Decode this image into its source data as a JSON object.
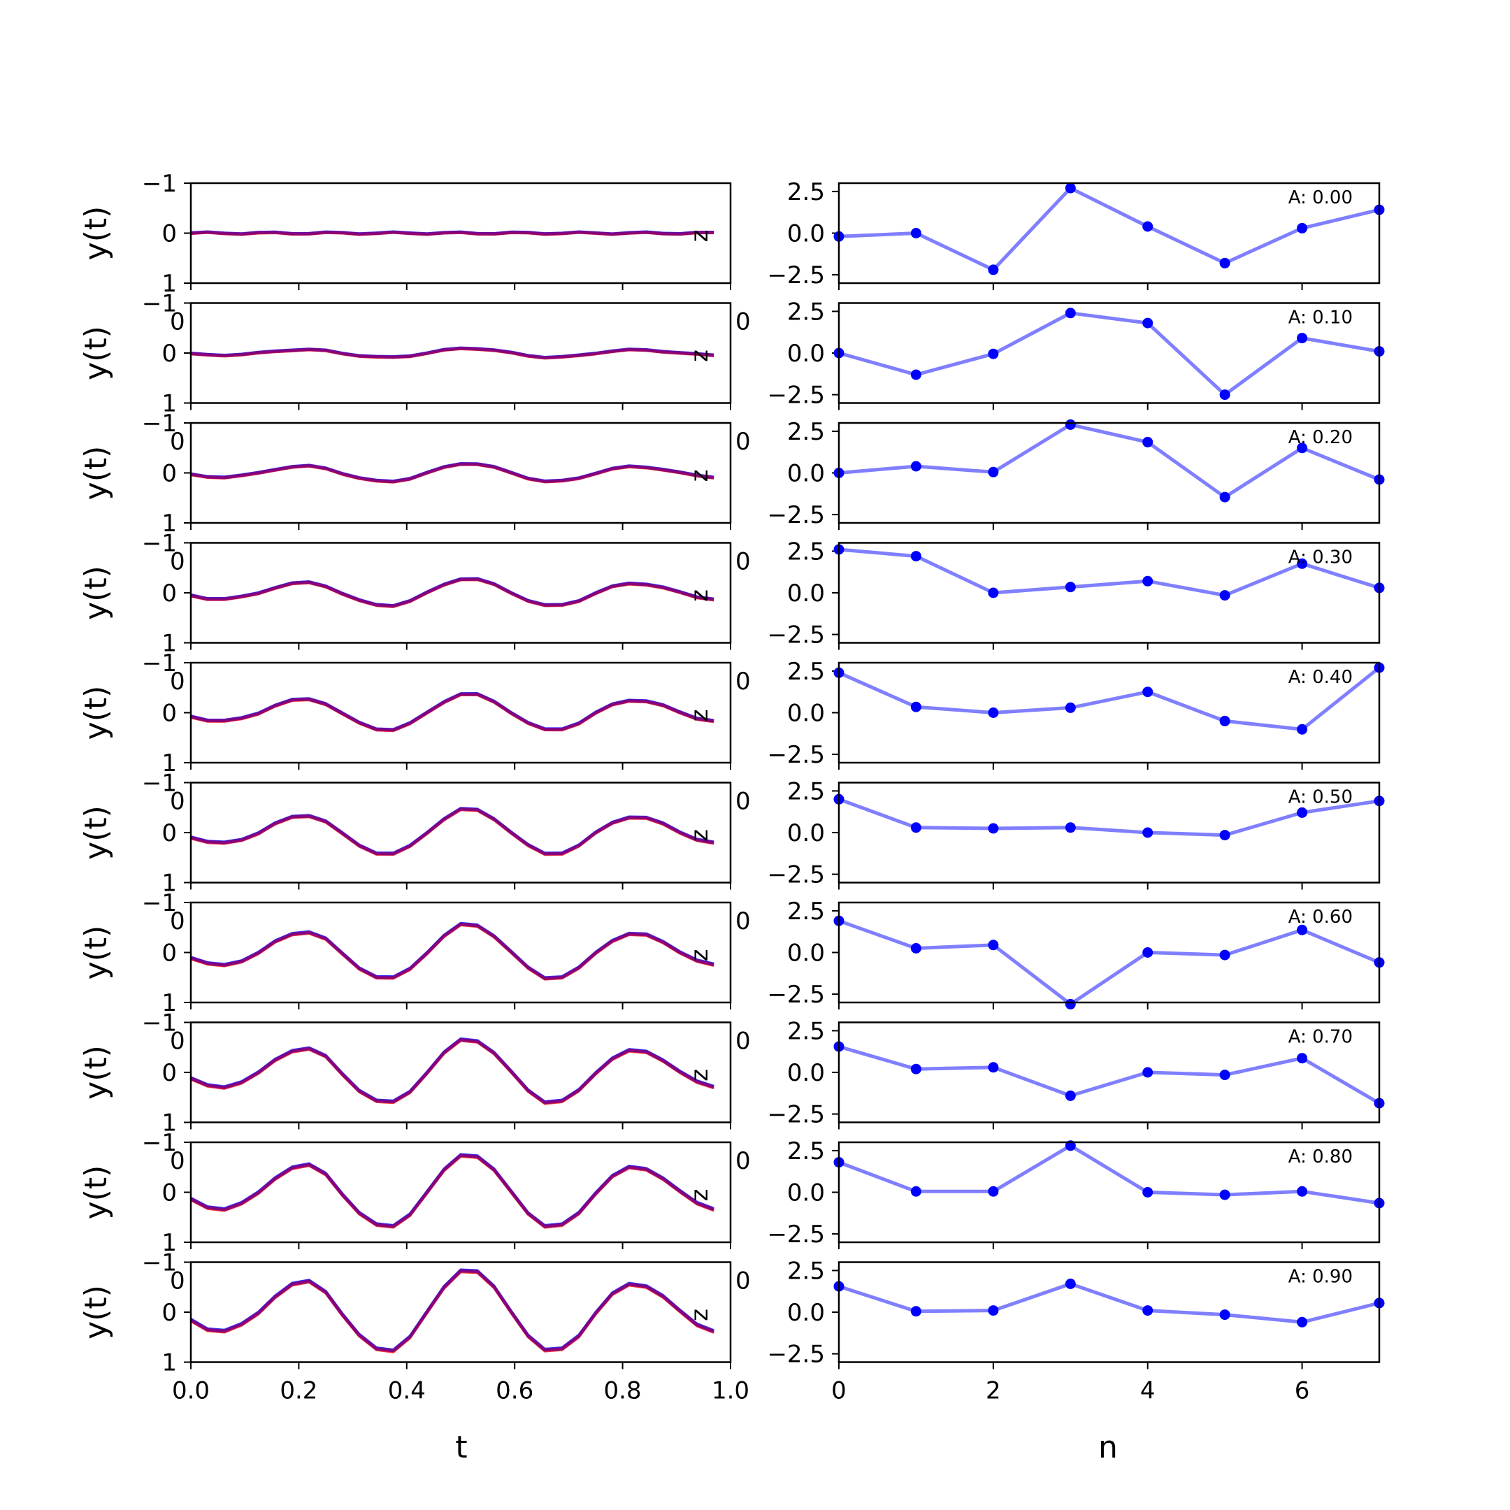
{
  "figure": {
    "left_column": {
      "xlabel": "t",
      "ylabel": "y(t)",
      "side_label": "z"
    },
    "right_column": {
      "xlabel": "n"
    }
  },
  "chart_data": [
    {
      "type": "line",
      "panel": "left",
      "rows": 10,
      "xlabel": "t",
      "ylabel": "y(t)",
      "xlim": [
        0,
        1
      ],
      "ylim": [
        -1,
        1
      ],
      "xticks": [
        "0.0",
        "0.2",
        "0.4",
        "0.6",
        "0.8",
        "1.0"
      ],
      "yticks": [
        "-1",
        "0",
        "1"
      ],
      "x": [
        0.0,
        0.031,
        0.062,
        0.094,
        0.125,
        0.156,
        0.188,
        0.219,
        0.25,
        0.281,
        0.312,
        0.344,
        0.375,
        0.406,
        0.438,
        0.469,
        0.5,
        0.531,
        0.562,
        0.594,
        0.625,
        0.656,
        0.688,
        0.719,
        0.75,
        0.781,
        0.812,
        0.844,
        0.875,
        0.906,
        0.938,
        0.969
      ],
      "row_amplitudes": [
        0.0,
        0.1,
        0.2,
        0.3,
        0.4,
        0.5,
        0.6,
        0.7,
        0.8,
        0.9
      ],
      "base_shape": [
        -0.18,
        -0.38,
        -0.42,
        -0.28,
        -0.02,
        0.35,
        0.62,
        0.68,
        0.45,
        -0.05,
        -0.52,
        -0.82,
        -0.85,
        -0.55,
        0.0,
        0.55,
        0.93,
        0.9,
        0.55,
        0.0,
        -0.52,
        -0.85,
        -0.82,
        -0.52,
        -0.02,
        0.4,
        0.62,
        0.58,
        0.35,
        0.02,
        -0.28,
        -0.42
      ],
      "series": [
        {
          "name": "",
          "color": "#0000ff"
        },
        {
          "name": "",
          "color": "#ff0000"
        },
        {
          "name": "",
          "color": "#800080"
        }
      ]
    },
    {
      "type": "line",
      "panel": "right",
      "rows": 10,
      "xlabel": "n",
      "xlim": [
        0,
        7
      ],
      "ylim": [
        -3,
        3
      ],
      "xticks": [
        "0",
        "2",
        "4",
        "6"
      ],
      "yticks": [
        "2.5",
        "0.0",
        "-2.5"
      ],
      "x": [
        0,
        1,
        2,
        3,
        4,
        5,
        6,
        7
      ],
      "annotations": [
        "A: 0.00",
        "A: 0.10",
        "A: 0.20",
        "A: 0.30",
        "A: 0.40",
        "A: 0.50",
        "A: 0.60",
        "A: 0.70",
        "A: 0.80",
        "A: 0.90"
      ],
      "series": [
        {
          "values": [
            -0.2,
            0.0,
            -2.2,
            2.7,
            0.4,
            -1.8,
            0.3,
            1.4
          ]
        },
        {
          "values": [
            0.0,
            -1.3,
            -0.05,
            2.4,
            1.8,
            -2.5,
            0.9,
            0.1
          ]
        },
        {
          "values": [
            0.0,
            0.4,
            0.05,
            2.9,
            1.85,
            -1.45,
            1.5,
            -0.4
          ]
        },
        {
          "values": [
            2.6,
            2.2,
            0.0,
            0.35,
            0.7,
            -0.15,
            1.75,
            0.3
          ]
        },
        {
          "values": [
            2.4,
            0.35,
            0.0,
            0.3,
            1.25,
            -0.5,
            -1.0,
            2.7
          ]
        },
        {
          "values": [
            2.0,
            0.3,
            0.25,
            0.3,
            0.0,
            -0.15,
            1.2,
            1.9
          ]
        },
        {
          "values": [
            1.9,
            0.25,
            0.45,
            -3.1,
            0.0,
            -0.15,
            1.35,
            -0.6
          ]
        },
        {
          "values": [
            1.55,
            0.2,
            0.3,
            -1.4,
            0.0,
            -0.15,
            0.85,
            -1.85
          ]
        },
        {
          "values": [
            1.8,
            0.05,
            0.05,
            2.8,
            0.0,
            -0.15,
            0.05,
            -0.65
          ]
        },
        {
          "values": [
            1.55,
            0.05,
            0.1,
            1.7,
            0.1,
            -0.15,
            -0.6,
            0.55
          ]
        }
      ],
      "color": "#0000ff"
    }
  ]
}
